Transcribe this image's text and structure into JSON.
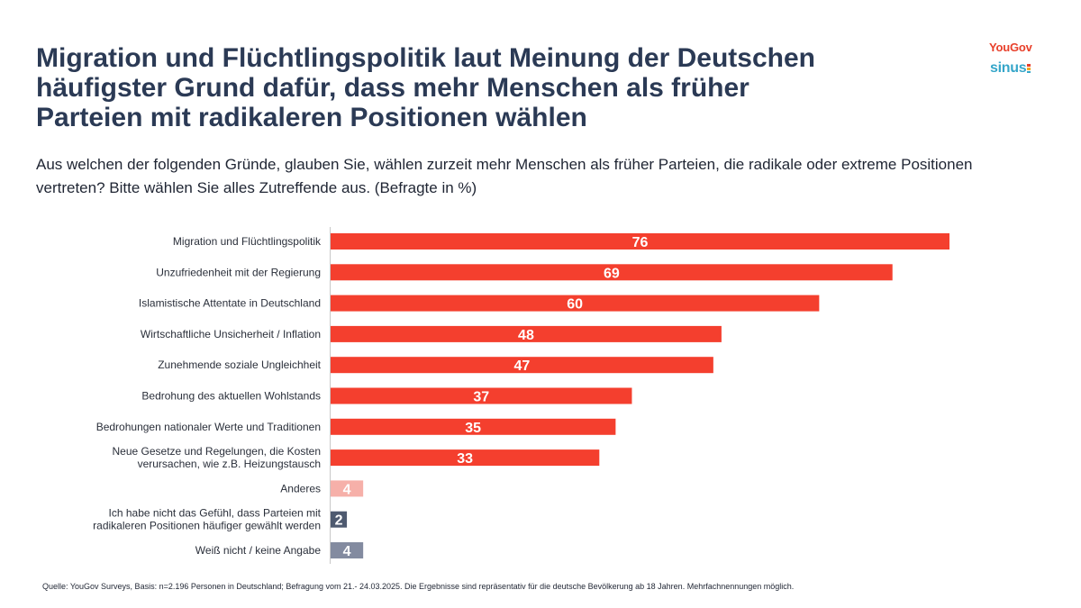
{
  "title_lines": [
    "Migration und Flüchtlingspolitik laut Meinung der Deutschen",
    "häufigster Grund dafür, dass mehr Menschen als früher",
    "Parteien mit radikaleren Positionen wählen"
  ],
  "subtitle": "Aus welchen der folgenden Gründe, glauben Sie, wählen zurzeit mehr Menschen als früher Parteien, die radikale oder extreme Positionen vertreten? Bitte wählen Sie alles Zutreffende aus. (Befragte in %)",
  "logos": {
    "yougov": "YouGov",
    "sinus": "sinus"
  },
  "source": "Quelle: YouGov Surveys, Basis: n=2.196 Personen in Deutschland; Befragung vom 21.- 24.03.2025. Die Ergebnisse sind repräsentativ für die deutsche Bevölkerung ab 18 Jahren. Mehrfachnennungen möglich.",
  "colors": {
    "main": "#f43f2e",
    "other": "#f6b0a9",
    "dark": "#4e5a70",
    "gray": "#838ba0",
    "title": "#2b3a55"
  },
  "chart_data": {
    "type": "bar",
    "orientation": "horizontal",
    "categories": [
      [
        "Migration und Flüchtlingspolitik"
      ],
      [
        "Unzufriedenheit mit der Regierung"
      ],
      [
        "Islamistische Attentate in Deutschland"
      ],
      [
        "Wirtschaftliche Unsicherheit / Inflation"
      ],
      [
        "Zunehmende soziale Ungleichheit"
      ],
      [
        "Bedrohung des aktuellen Wohlstands"
      ],
      [
        "Bedrohungen nationaler Werte und Traditionen"
      ],
      [
        "Neue Gesetze und Regelungen, die Kosten",
        "verursachen, wie z.B. Heizungstausch"
      ],
      [
        "Anderes"
      ],
      [
        "Ich habe nicht das Gefühl, dass Parteien mit",
        "radikaleren Positionen häufiger gewählt werden"
      ],
      [
        "Weiß nicht / keine Angabe"
      ]
    ],
    "values": [
      76,
      69,
      60,
      48,
      47,
      37,
      35,
      33,
      4,
      2,
      4
    ],
    "bar_colors": [
      "main",
      "main",
      "main",
      "main",
      "main",
      "main",
      "main",
      "main",
      "other",
      "dark",
      "gray"
    ],
    "xlim": [
      0,
      76
    ],
    "data_labels": true,
    "grid": false,
    "legend": "none"
  }
}
